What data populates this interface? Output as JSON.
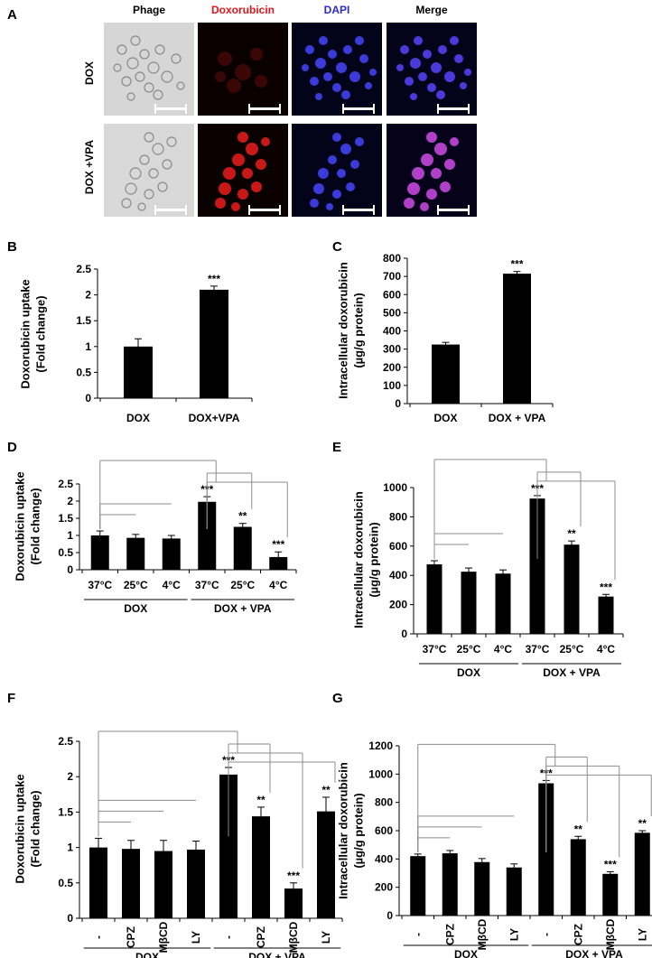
{
  "panel_a": {
    "letter": "A",
    "columns": [
      "Phage",
      "Doxorubicin",
      "DAPI",
      "Merge"
    ],
    "column_colors": [
      "#000000",
      "#e8141b",
      "#2b2bd6",
      "#000000"
    ],
    "rows": [
      "DOX",
      "DOX +VPA"
    ]
  },
  "chart_data": [
    {
      "id": "B",
      "letter": "B",
      "type": "bar",
      "categories": [
        "DOX",
        "DOX+VPA"
      ],
      "values": [
        1.0,
        2.1
      ],
      "errors": [
        0.15,
        0.07
      ],
      "significance": [
        "",
        "***"
      ],
      "ylabel": "Doxorubicin uptake\n(Fold change)",
      "ylim": [
        0,
        2.5
      ],
      "yticks": [
        0,
        0.5,
        1,
        1.5,
        2,
        2.5
      ],
      "groups": [],
      "brackets": []
    },
    {
      "id": "C",
      "letter": "C",
      "type": "bar",
      "categories": [
        "DOX",
        "DOX + VPA"
      ],
      "values": [
        325,
        715
      ],
      "errors": [
        12,
        12
      ],
      "significance": [
        "",
        "***"
      ],
      "ylabel": "Intracellular doxorubicin\n(µg/g protein)",
      "ylim": [
        0,
        800
      ],
      "yticks": [
        0,
        100,
        200,
        300,
        400,
        500,
        600,
        700,
        800
      ],
      "groups": [],
      "brackets": []
    },
    {
      "id": "D",
      "letter": "D",
      "type": "bar",
      "categories": [
        "37°C",
        "25°C",
        "4°C",
        "37°C",
        "25°C",
        "4°C"
      ],
      "values": [
        1.0,
        0.93,
        0.91,
        1.98,
        1.25,
        0.37
      ],
      "errors": [
        0.13,
        0.1,
        0.09,
        0.15,
        0.1,
        0.15
      ],
      "significance": [
        "",
        "",
        "",
        "***",
        "**",
        "***"
      ],
      "ylabel": "Doxorubicin uptake\n(Fold change)",
      "ylim": [
        0,
        2.5
      ],
      "yticks": [
        0,
        0.5,
        1,
        1.5,
        2,
        2.5
      ],
      "groups": [
        {
          "label": "DOX",
          "from": 0,
          "to": 2
        },
        {
          "label": "DOX + VPA",
          "from": 3,
          "to": 5
        }
      ],
      "brackets": [
        [
          0,
          1
        ],
        [
          0,
          2
        ],
        [
          3,
          4
        ],
        [
          3,
          5
        ],
        [
          0,
          3
        ]
      ]
    },
    {
      "id": "E",
      "letter": "E",
      "type": "bar",
      "categories": [
        "37°C",
        "25°C",
        "4°C",
        "37°C",
        "25°C",
        "4°C"
      ],
      "values": [
        475,
        425,
        412,
        925,
        610,
        255
      ],
      "errors": [
        25,
        25,
        25,
        20,
        25,
        15
      ],
      "significance": [
        "",
        "",
        "",
        "***",
        "**",
        "***"
      ],
      "ylabel": "Intracellular doxorubicin\n(µg/g protein)",
      "ylim": [
        0,
        1000
      ],
      "yticks": [
        0,
        200,
        400,
        600,
        800,
        1000
      ],
      "groups": [
        {
          "label": "DOX",
          "from": 0,
          "to": 2
        },
        {
          "label": "DOX + VPA",
          "from": 3,
          "to": 5
        }
      ],
      "brackets": [
        [
          0,
          1
        ],
        [
          0,
          2
        ],
        [
          3,
          4
        ],
        [
          3,
          5
        ],
        [
          0,
          3
        ]
      ]
    },
    {
      "id": "F",
      "letter": "F",
      "type": "bar",
      "categories": [
        "-",
        "CPZ",
        "MβCD",
        "LY",
        "-",
        "CPZ",
        "MβCD",
        "LY"
      ],
      "values": [
        1.0,
        0.98,
        0.95,
        0.97,
        2.03,
        1.44,
        0.42,
        1.51
      ],
      "errors": [
        0.13,
        0.12,
        0.15,
        0.12,
        0.1,
        0.13,
        0.08,
        0.2
      ],
      "significance": [
        "",
        "",
        "",
        "",
        "***",
        "**",
        "***",
        "**"
      ],
      "ylabel": "Doxorubicin uptake\n(Fold change)",
      "ylim": [
        0,
        2.5
      ],
      "yticks": [
        0,
        0.5,
        1,
        1.5,
        2,
        2.5
      ],
      "groups": [
        {
          "label": "DOX",
          "from": 0,
          "to": 3
        },
        {
          "label": "DOX + VPA",
          "from": 4,
          "to": 7
        }
      ],
      "brackets": [
        [
          0,
          1
        ],
        [
          0,
          2
        ],
        [
          0,
          3
        ],
        [
          4,
          5
        ],
        [
          4,
          6
        ],
        [
          4,
          7
        ],
        [
          0,
          4
        ]
      ]
    },
    {
      "id": "G",
      "letter": "G",
      "type": "bar",
      "categories": [
        "-",
        "CPZ",
        "MβCD",
        "LY",
        "-",
        "CPZ",
        "MβCD",
        "LY"
      ],
      "values": [
        420,
        440,
        378,
        340,
        935,
        540,
        295,
        585
      ],
      "errors": [
        15,
        20,
        25,
        25,
        20,
        20,
        15,
        15
      ],
      "significance": [
        "",
        "",
        "",
        "",
        "***",
        "**",
        "***",
        "**"
      ],
      "ylabel": "Intracellular doxorubicin\n(µg/g protein)",
      "ylim": [
        0,
        1200
      ],
      "yticks": [
        0,
        200,
        400,
        600,
        800,
        1000,
        1200
      ],
      "groups": [
        {
          "label": "DOX",
          "from": 0,
          "to": 3
        },
        {
          "label": "DOX + VPA",
          "from": 4,
          "to": 7
        }
      ],
      "brackets": [
        [
          0,
          1
        ],
        [
          0,
          2
        ],
        [
          0,
          3
        ],
        [
          4,
          5
        ],
        [
          4,
          6
        ],
        [
          4,
          7
        ],
        [
          0,
          4
        ]
      ]
    }
  ]
}
